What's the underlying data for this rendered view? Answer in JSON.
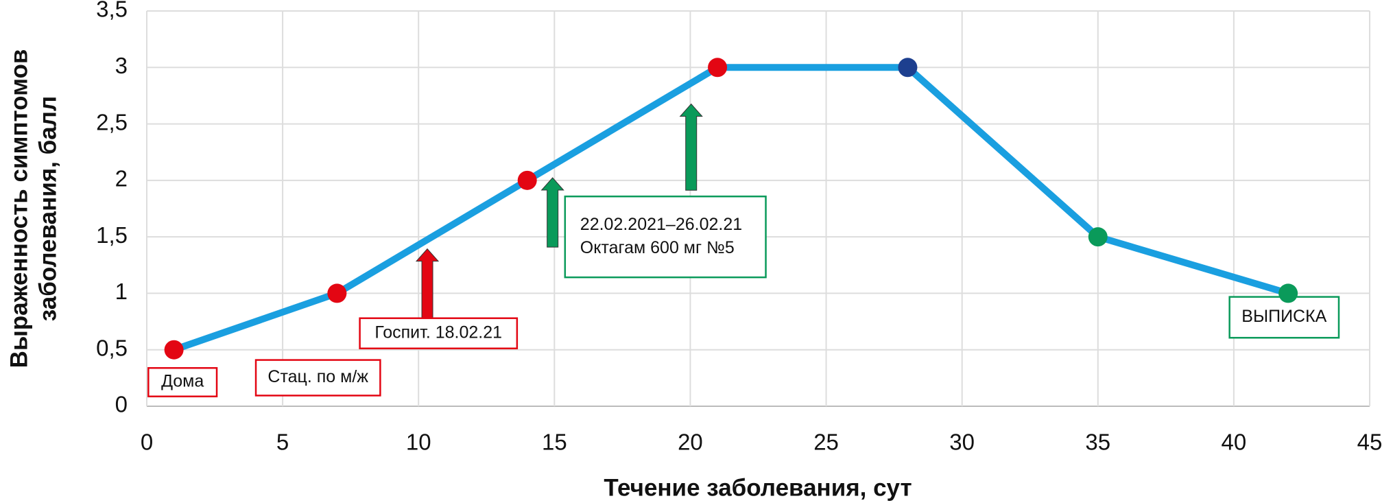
{
  "chart_data": {
    "type": "line",
    "xlabel": "Течение заболевания, сут",
    "ylabel": [
      "Выраженность симптомов",
      "заболевания, балл"
    ],
    "x": [
      1,
      7,
      14,
      21,
      28,
      35,
      42
    ],
    "series": [
      {
        "color": "#1a9fe0",
        "values": [
          0.5,
          1,
          2,
          3,
          3,
          1.5,
          1
        ],
        "point_colors": [
          "#e30613",
          "#e30613",
          "#e30613",
          "#e30613",
          "#1d3f8f",
          "#0a9a5a",
          "#0a9a5a"
        ]
      }
    ],
    "xlim": [
      0,
      45
    ],
    "xticks": [
      0,
      5,
      10,
      15,
      20,
      25,
      30,
      35,
      40,
      45
    ],
    "ylim": [
      0,
      3.5
    ],
    "yticks": [
      0,
      {
        "value": 0.5,
        "label": "0,5"
      },
      1,
      {
        "value": 1.5,
        "label": "1,5"
      },
      2,
      {
        "value": 2.5,
        "label": "2,5"
      },
      3,
      {
        "value": 3.5,
        "label": "3,5"
      }
    ],
    "grid": true,
    "annotations": [
      {
        "lines": [
          "Дома"
        ],
        "color": "#e30613"
      },
      {
        "lines": [
          "Стац. по м/ж"
        ],
        "color": "#e30613"
      },
      {
        "lines": [
          "Госпит. 18.02.21"
        ],
        "color": "#e30613"
      },
      {
        "lines": [
          "22.02.2021–26.02.21",
          "Октагам 600 мг №5"
        ],
        "color": "#0a9a5a"
      },
      {
        "lines": [
          "ВЫПИСКА"
        ],
        "color": "#0a9a5a"
      }
    ]
  }
}
